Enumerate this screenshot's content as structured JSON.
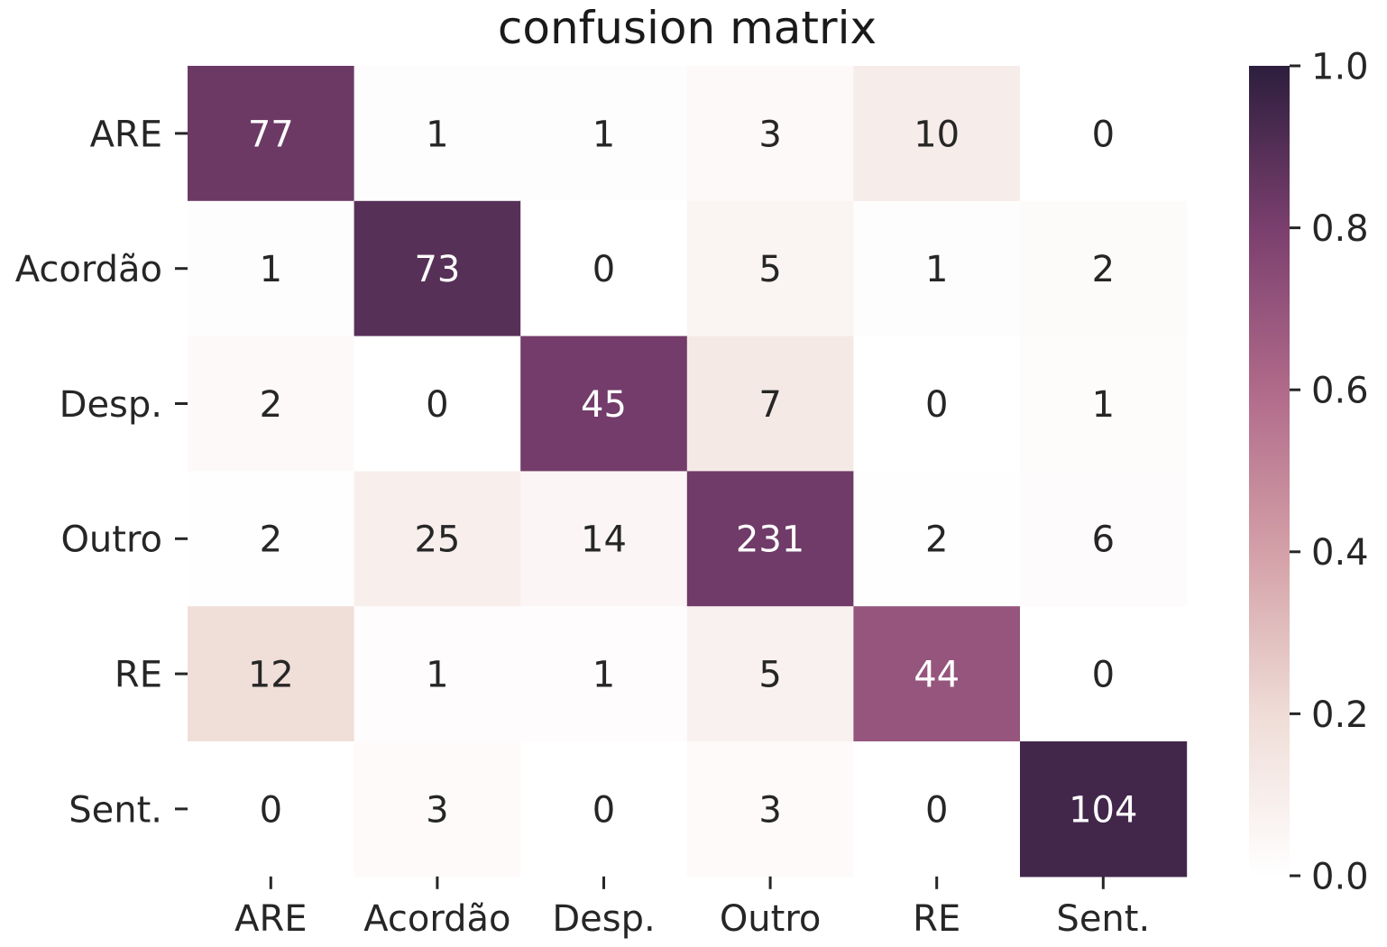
{
  "chart_data": {
    "type": "heatmap",
    "title": "confusion matrix",
    "xlabel": "",
    "ylabel": "",
    "x_categories": [
      "ARE",
      "Acordão",
      "Desp.",
      "Outro",
      "RE",
      "Sent."
    ],
    "y_categories": [
      "ARE",
      "Acordão",
      "Desp.",
      "Outro",
      "RE",
      "Sent."
    ],
    "values": [
      [
        77,
        1,
        1,
        3,
        10,
        0
      ],
      [
        1,
        73,
        0,
        5,
        1,
        2
      ],
      [
        2,
        0,
        45,
        7,
        0,
        1
      ],
      [
        2,
        25,
        14,
        231,
        2,
        6
      ],
      [
        12,
        1,
        1,
        5,
        44,
        0
      ],
      [
        0,
        3,
        0,
        3,
        0,
        104
      ]
    ],
    "normalization": "row",
    "colorbar": {
      "range": [
        0.0,
        1.0
      ],
      "ticks": [
        "0.0",
        "0.2",
        "0.4",
        "0.6",
        "0.8",
        "1.0"
      ],
      "colors": [
        "#ffffff",
        "#efdcd6",
        "#d3a0a7",
        "#b06a8a",
        "#7a3f6e",
        "#2d1e3e"
      ]
    },
    "annot_dark_text_color": "#262626",
    "annot_light_text_color": "#ffffff"
  }
}
